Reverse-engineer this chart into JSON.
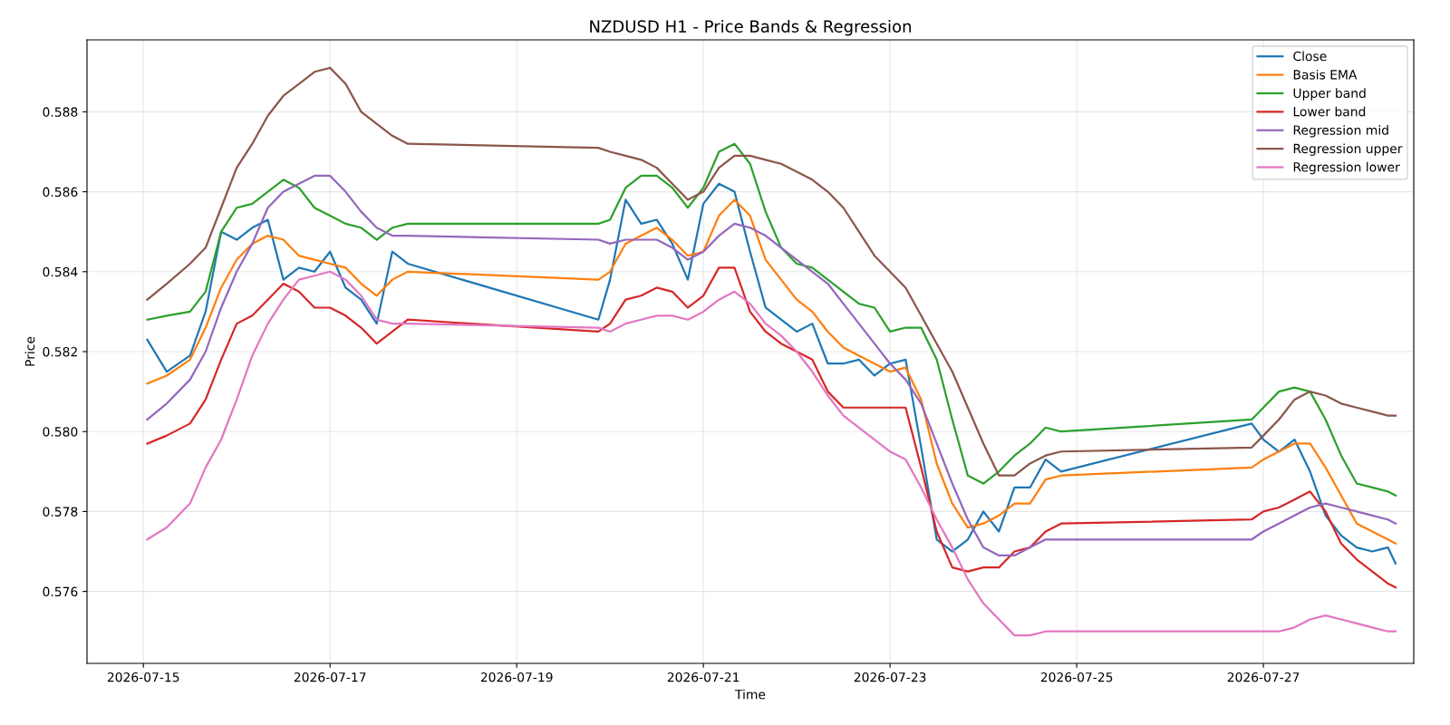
{
  "chart_data": {
    "type": "line",
    "title": "NZDUSD H1 - Price Bands & Regression",
    "xlabel": "Time",
    "ylabel": "Price",
    "x": [
      "2026-07-15T01:00",
      "2026-07-15T06:00",
      "2026-07-15T12:00",
      "2026-07-15T16:00",
      "2026-07-15T20:00",
      "2026-07-16T00:00",
      "2026-07-16T04:00",
      "2026-07-16T08:00",
      "2026-07-16T12:00",
      "2026-07-16T16:00",
      "2026-07-16T20:00",
      "2026-07-17T00:00",
      "2026-07-17T04:00",
      "2026-07-17T08:00",
      "2026-07-17T12:00",
      "2026-07-17T16:00",
      "2026-07-17T20:00",
      "2026-07-19T21:00",
      "2026-07-20T00:00",
      "2026-07-20T04:00",
      "2026-07-20T08:00",
      "2026-07-20T12:00",
      "2026-07-20T16:00",
      "2026-07-20T20:00",
      "2026-07-21T00:00",
      "2026-07-21T04:00",
      "2026-07-21T08:00",
      "2026-07-21T12:00",
      "2026-07-21T16:00",
      "2026-07-21T20:00",
      "2026-07-22T00:00",
      "2026-07-22T04:00",
      "2026-07-22T08:00",
      "2026-07-22T12:00",
      "2026-07-22T16:00",
      "2026-07-22T20:00",
      "2026-07-23T00:00",
      "2026-07-23T04:00",
      "2026-07-23T08:00",
      "2026-07-23T12:00",
      "2026-07-23T16:00",
      "2026-07-23T20:00",
      "2026-07-24T00:00",
      "2026-07-24T04:00",
      "2026-07-24T08:00",
      "2026-07-24T12:00",
      "2026-07-24T16:00",
      "2026-07-24T20:00",
      "2026-07-26T21:00",
      "2026-07-27T00:00",
      "2026-07-27T04:00",
      "2026-07-27T08:00",
      "2026-07-27T12:00",
      "2026-07-27T16:00",
      "2026-07-27T20:00",
      "2026-07-28T00:00",
      "2026-07-28T04:00",
      "2026-07-28T08:00",
      "2026-07-28T10:00"
    ],
    "series": [
      {
        "name": "Close",
        "color": "#1f77b4",
        "values": [
          0.5823,
          0.5815,
          0.5819,
          0.583,
          0.585,
          0.5848,
          0.5851,
          0.5853,
          0.5838,
          0.5841,
          0.584,
          0.5845,
          0.5836,
          0.5833,
          0.5827,
          0.5845,
          0.5842,
          0.5828,
          0.5838,
          0.5858,
          0.5852,
          0.5853,
          0.5847,
          0.5838,
          0.5857,
          0.5862,
          0.586,
          0.5845,
          0.5831,
          0.5828,
          0.5825,
          0.5827,
          0.5817,
          0.5817,
          0.5818,
          0.5814,
          0.5817,
          0.5818,
          0.5796,
          0.5773,
          0.577,
          0.5773,
          0.578,
          0.5775,
          0.5786,
          0.5786,
          0.5793,
          0.579,
          0.5802,
          0.5798,
          0.5795,
          0.5798,
          0.579,
          0.5779,
          0.5774,
          0.5771,
          0.577,
          0.5771,
          0.5767
        ]
      },
      {
        "name": "Basis EMA",
        "color": "#ff7f0e",
        "values": [
          0.5812,
          0.5814,
          0.5818,
          0.5826,
          0.5836,
          0.5843,
          0.5847,
          0.5849,
          0.5848,
          0.5844,
          0.5843,
          0.5842,
          0.5841,
          0.5837,
          0.5834,
          0.5838,
          0.584,
          0.5838,
          0.584,
          0.5847,
          0.5849,
          0.5851,
          0.5848,
          0.5844,
          0.5845,
          0.5854,
          0.5858,
          0.5854,
          0.5843,
          0.5838,
          0.5833,
          0.583,
          0.5825,
          0.5821,
          0.5819,
          0.5817,
          0.5815,
          0.5816,
          0.5808,
          0.5792,
          0.5782,
          0.5776,
          0.5777,
          0.5779,
          0.5782,
          0.5782,
          0.5788,
          0.5789,
          0.5791,
          0.5793,
          0.5795,
          0.5797,
          0.5797,
          0.5791,
          0.5784,
          0.5777,
          0.5775,
          0.5773,
          0.5772
        ]
      },
      {
        "name": "Upper band",
        "color": "#2ca02c",
        "values": [
          0.5828,
          0.5829,
          0.583,
          0.5835,
          0.585,
          0.5856,
          0.5857,
          0.586,
          0.5863,
          0.5861,
          0.5856,
          0.5854,
          0.5852,
          0.5851,
          0.5848,
          0.5851,
          0.5852,
          0.5852,
          0.5853,
          0.5861,
          0.5864,
          0.5864,
          0.5861,
          0.5856,
          0.5861,
          0.587,
          0.5872,
          0.5867,
          0.5855,
          0.5846,
          0.5842,
          0.5841,
          0.5838,
          0.5835,
          0.5832,
          0.5831,
          0.5825,
          0.5826,
          0.5826,
          0.5818,
          0.5803,
          0.5789,
          0.5787,
          0.579,
          0.5794,
          0.5797,
          0.5801,
          0.58,
          0.5803,
          0.5806,
          0.581,
          0.5811,
          0.581,
          0.5803,
          0.5794,
          0.5787,
          0.5786,
          0.5785,
          0.5784
        ]
      },
      {
        "name": "Lower band",
        "color": "#d62728",
        "values": [
          0.5797,
          0.5799,
          0.5802,
          0.5808,
          0.5818,
          0.5827,
          0.5829,
          0.5833,
          0.5837,
          0.5835,
          0.5831,
          0.5831,
          0.5829,
          0.5826,
          0.5822,
          0.5825,
          0.5828,
          0.5825,
          0.5827,
          0.5833,
          0.5834,
          0.5836,
          0.5835,
          0.5831,
          0.5834,
          0.5841,
          0.5841,
          0.583,
          0.5825,
          0.5822,
          0.582,
          0.5818,
          0.581,
          0.5806,
          0.5806,
          0.5806,
          0.5806,
          0.5806,
          0.5791,
          0.5775,
          0.5766,
          0.5765,
          0.5766,
          0.5766,
          0.577,
          0.5771,
          0.5775,
          0.5777,
          0.5778,
          0.578,
          0.5781,
          0.5783,
          0.5785,
          0.578,
          0.5772,
          0.5768,
          0.5765,
          0.5762,
          0.5761
        ]
      },
      {
        "name": "Regression mid",
        "color": "#9467bd",
        "values": [
          0.5803,
          0.5807,
          0.5813,
          0.582,
          0.5831,
          0.584,
          0.5847,
          0.5856,
          0.586,
          0.5862,
          0.5864,
          0.5864,
          0.586,
          0.5855,
          0.5851,
          0.5849,
          0.5849,
          0.5848,
          0.5847,
          0.5848,
          0.5848,
          0.5848,
          0.5846,
          0.5843,
          0.5845,
          0.5849,
          0.5852,
          0.5851,
          0.5849,
          0.5846,
          0.5843,
          0.584,
          0.5837,
          0.5832,
          0.5827,
          0.5822,
          0.5817,
          0.5813,
          0.5807,
          0.5797,
          0.5787,
          0.5778,
          0.5771,
          0.5769,
          0.5769,
          0.5771,
          0.5773,
          0.5773,
          0.5773,
          0.5775,
          0.5777,
          0.5779,
          0.5781,
          0.5782,
          0.5781,
          0.578,
          0.5779,
          0.5778,
          0.5777
        ]
      },
      {
        "name": "Regression upper",
        "color": "#8c564b",
        "values": [
          0.5833,
          0.5837,
          0.5842,
          0.5846,
          0.5856,
          0.5866,
          0.5872,
          0.5879,
          0.5884,
          0.5887,
          0.589,
          0.5891,
          0.5887,
          0.588,
          0.5877,
          0.5874,
          0.5872,
          0.5871,
          0.587,
          0.5869,
          0.5868,
          0.5866,
          0.5862,
          0.5858,
          0.586,
          0.5866,
          0.5869,
          0.5869,
          0.5868,
          0.5867,
          0.5865,
          0.5863,
          0.586,
          0.5856,
          0.585,
          0.5844,
          0.584,
          0.5836,
          0.5829,
          0.5822,
          0.5815,
          0.5806,
          0.5797,
          0.5789,
          0.5789,
          0.5792,
          0.5794,
          0.5795,
          0.5796,
          0.5799,
          0.5803,
          0.5808,
          0.581,
          0.5809,
          0.5807,
          0.5806,
          0.5805,
          0.5804,
          0.5804
        ]
      },
      {
        "name": "Regression lower",
        "color": "#e377c2",
        "values": [
          0.5773,
          0.5776,
          0.5782,
          0.5791,
          0.5798,
          0.5808,
          0.5819,
          0.5827,
          0.5833,
          0.5838,
          0.5839,
          0.584,
          0.5838,
          0.5834,
          0.5828,
          0.5827,
          0.5827,
          0.5826,
          0.5825,
          0.5827,
          0.5828,
          0.5829,
          0.5829,
          0.5828,
          0.583,
          0.5833,
          0.5835,
          0.5832,
          0.5827,
          0.5824,
          0.582,
          0.5815,
          0.5809,
          0.5804,
          0.5801,
          0.5798,
          0.5795,
          0.5793,
          0.5786,
          0.5778,
          0.5771,
          0.5763,
          0.5757,
          0.5753,
          0.5749,
          0.5749,
          0.575,
          0.575,
          0.575,
          0.575,
          0.575,
          0.5751,
          0.5753,
          0.5754,
          0.5753,
          0.5752,
          0.5751,
          0.575,
          0.575
        ]
      }
    ],
    "xlim": [
      "2026-07-14T09:30",
      "2026-07-28T14:40"
    ],
    "xticks": [
      "2026-07-15",
      "2026-07-17",
      "2026-07-19",
      "2026-07-21",
      "2026-07-23",
      "2026-07-25",
      "2026-07-27"
    ],
    "ylim": [
      0.5742,
      0.5898
    ],
    "yticks": [
      {
        "value": 0.576,
        "label": "0.576"
      },
      {
        "value": 0.578,
        "label": "0.578"
      },
      {
        "value": 0.58,
        "label": "0.580"
      },
      {
        "value": 0.582,
        "label": "0.582"
      },
      {
        "value": 0.584,
        "label": "0.584"
      },
      {
        "value": 0.586,
        "label": "0.586"
      },
      {
        "value": 0.588,
        "label": "0.588"
      }
    ],
    "grid": true,
    "legend": "top right",
    "marker": "none",
    "line_style": "solid"
  }
}
